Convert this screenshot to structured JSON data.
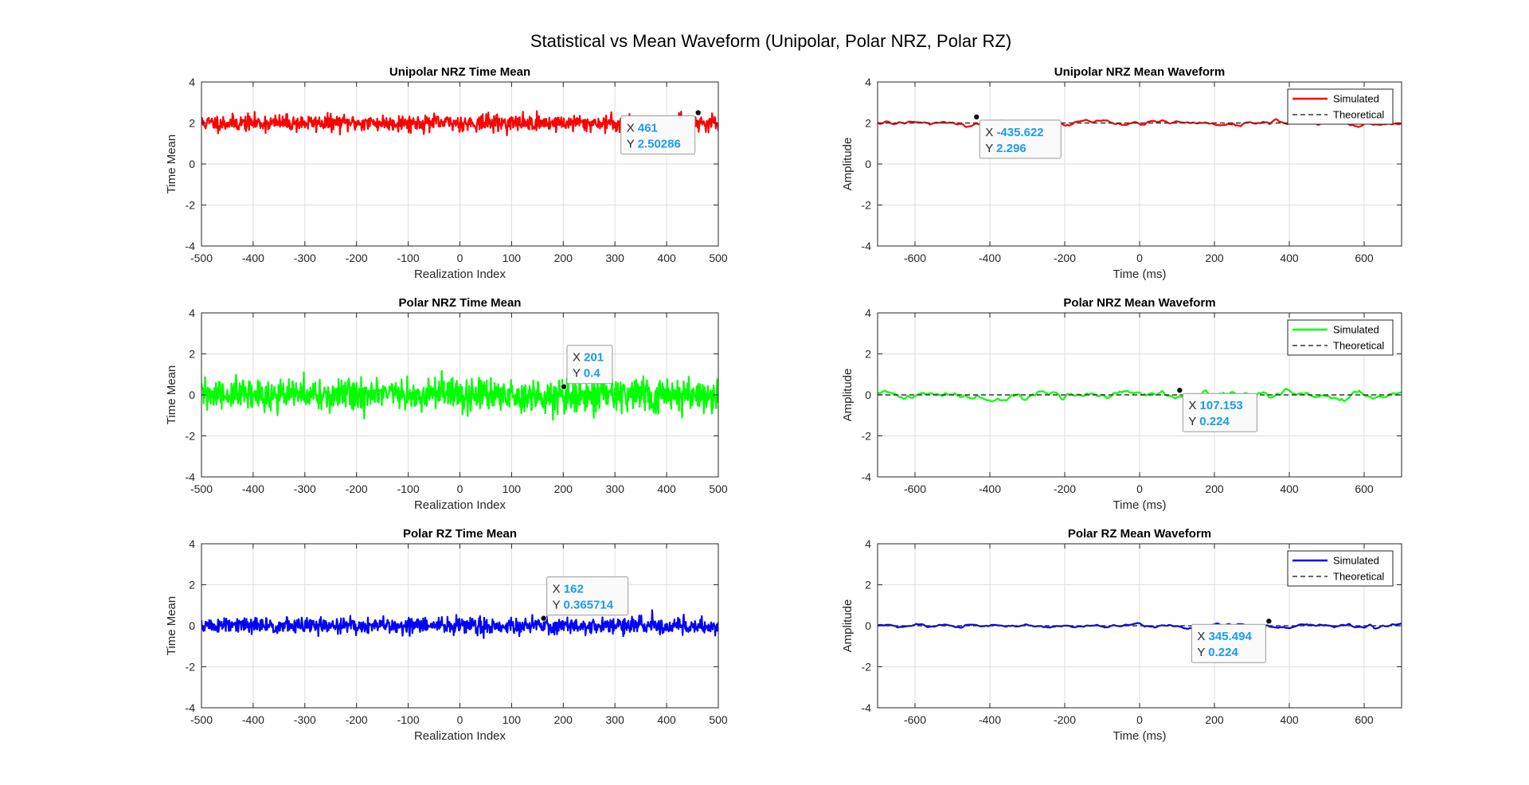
{
  "figure": {
    "suptitle": "Statistical vs Mean Waveform (Unipolar, Polar NRZ, Polar RZ)"
  },
  "chart_data": [
    {
      "type": "line",
      "title": "Unipolar NRZ Time Mean",
      "xlabel": "Realization Index",
      "ylabel": "Time Mean",
      "xlim": [
        -500,
        500
      ],
      "ylim": [
        -4,
        4
      ],
      "xticks": [
        "-500",
        "-400",
        "-300",
        "-200",
        "-100",
        "0",
        "100",
        "200",
        "300",
        "400",
        "500"
      ],
      "yticks": [
        "-4",
        "-2",
        "0",
        "2",
        "4"
      ],
      "grid": true,
      "series": [
        {
          "color": "#ff0000",
          "line_style": "solid",
          "noise_kind": "rough",
          "x_range": [
            -500,
            500
          ],
          "mean": 2.0,
          "spread": 0.2,
          "seed": 11
        }
      ],
      "datatip": {
        "x_label": "X",
        "y_label": "Y",
        "x": 461,
        "y": 2.50286,
        "x_text": "461",
        "y_text": "2.50286",
        "box_side": "left"
      }
    },
    {
      "type": "line",
      "title": "Unipolar NRZ Mean Waveform",
      "xlabel": "Time (ms)",
      "ylabel": "Amplitude",
      "xlim": [
        -700,
        700
      ],
      "ylim": [
        -4,
        4
      ],
      "xticks": [
        "-600",
        "-400",
        "-200",
        "0",
        "200",
        "400",
        "600"
      ],
      "yticks": [
        "-4",
        "-2",
        "0",
        "2",
        "4"
      ],
      "grid": true,
      "legend": {
        "position": "top-right",
        "entries": [
          "Simulated",
          "Theoretical"
        ]
      },
      "series": [
        {
          "name": "Simulated",
          "color": "#ff0000",
          "line_style": "solid",
          "noise_kind": "smooth",
          "x_range": [
            -700,
            700
          ],
          "mean": 2.0,
          "spread": 0.12,
          "seed": 21
        },
        {
          "name": "Theoretical",
          "color": "#333333",
          "line_style": "dashed",
          "x": [
            -700,
            700
          ],
          "y": [
            2.0,
            2.0
          ]
        }
      ],
      "datatip": {
        "x_label": "X",
        "y_label": "Y",
        "x": -435.622,
        "y": 2.296,
        "x_text": "-435.622",
        "y_text": "2.296",
        "box_side": "right"
      }
    },
    {
      "type": "line",
      "title": "Polar NRZ Time Mean",
      "xlabel": "Realization Index",
      "ylabel": "Time Mean",
      "xlim": [
        -500,
        500
      ],
      "ylim": [
        -4,
        4
      ],
      "xticks": [
        "-500",
        "-400",
        "-300",
        "-200",
        "-100",
        "0",
        "100",
        "200",
        "300",
        "400",
        "500"
      ],
      "yticks": [
        "-4",
        "-2",
        "0",
        "2",
        "4"
      ],
      "grid": true,
      "series": [
        {
          "color": "#00ff00",
          "line_style": "solid",
          "noise_kind": "rough",
          "x_range": [
            -500,
            500
          ],
          "mean": 0.0,
          "spread": 0.4,
          "seed": 31
        }
      ],
      "datatip": {
        "x_label": "X",
        "y_label": "Y",
        "x": 201,
        "y": 0.4,
        "x_text": "201",
        "y_text": "0.4",
        "box_side": "right"
      }
    },
    {
      "type": "line",
      "title": "Polar NRZ Mean Waveform",
      "xlabel": "Time (ms)",
      "ylabel": "Amplitude",
      "xlim": [
        -700,
        700
      ],
      "ylim": [
        -4,
        4
      ],
      "xticks": [
        "-600",
        "-400",
        "-200",
        "0",
        "200",
        "400",
        "600"
      ],
      "yticks": [
        "-4",
        "-2",
        "0",
        "2",
        "4"
      ],
      "grid": true,
      "legend": {
        "position": "top-right",
        "entries": [
          "Simulated",
          "Theoretical"
        ]
      },
      "series": [
        {
          "name": "Simulated",
          "color": "#00ff00",
          "line_style": "solid",
          "noise_kind": "smooth",
          "x_range": [
            -700,
            700
          ],
          "mean": 0.0,
          "spread": 0.2,
          "seed": 41
        },
        {
          "name": "Theoretical",
          "color": "#333333",
          "line_style": "dashed",
          "x": [
            -700,
            700
          ],
          "y": [
            0.0,
            0.0
          ]
        }
      ],
      "datatip": {
        "x_label": "X",
        "y_label": "Y",
        "x": 107.153,
        "y": 0.224,
        "x_text": "107.153",
        "y_text": "0.224",
        "box_side": "right"
      }
    },
    {
      "type": "line",
      "title": "Polar RZ Time Mean",
      "xlabel": "Realization Index",
      "ylabel": "Time Mean",
      "xlim": [
        -500,
        500
      ],
      "ylim": [
        -4,
        4
      ],
      "xticks": [
        "-500",
        "-400",
        "-300",
        "-200",
        "-100",
        "0",
        "100",
        "200",
        "300",
        "400",
        "500"
      ],
      "yticks": [
        "-4",
        "-2",
        "0",
        "2",
        "4"
      ],
      "grid": true,
      "series": [
        {
          "color": "#0000ff",
          "line_style": "solid",
          "noise_kind": "rough",
          "x_range": [
            -500,
            500
          ],
          "mean": 0.0,
          "spread": 0.2,
          "seed": 51
        }
      ],
      "datatip": {
        "x_label": "X",
        "y_label": "Y",
        "x": 162,
        "y": 0.365714,
        "x_text": "162",
        "y_text": "0.365714",
        "box_side": "right"
      }
    },
    {
      "type": "line",
      "title": "Polar RZ Mean Waveform",
      "xlabel": "Time (ms)",
      "ylabel": "Amplitude",
      "xlim": [
        -700,
        700
      ],
      "ylim": [
        -4,
        4
      ],
      "xticks": [
        "-600",
        "-400",
        "-200",
        "0",
        "200",
        "400",
        "600"
      ],
      "yticks": [
        "-4",
        "-2",
        "0",
        "2",
        "4"
      ],
      "grid": true,
      "legend": {
        "position": "top-right",
        "entries": [
          "Simulated",
          "Theoretical"
        ]
      },
      "series": [
        {
          "name": "Simulated",
          "color": "#0000ff",
          "line_style": "solid",
          "noise_kind": "smooth",
          "x_range": [
            -700,
            700
          ],
          "mean": 0.0,
          "spread": 0.1,
          "seed": 61
        },
        {
          "name": "Theoretical",
          "color": "#333333",
          "line_style": "dashed",
          "x": [
            -700,
            700
          ],
          "y": [
            0.0,
            0.0
          ]
        }
      ],
      "datatip": {
        "x_label": "X",
        "y_label": "Y",
        "x": 345.494,
        "y": 0.224,
        "x_text": "345.494",
        "y_text": "0.224",
        "box_side": "left"
      }
    }
  ]
}
